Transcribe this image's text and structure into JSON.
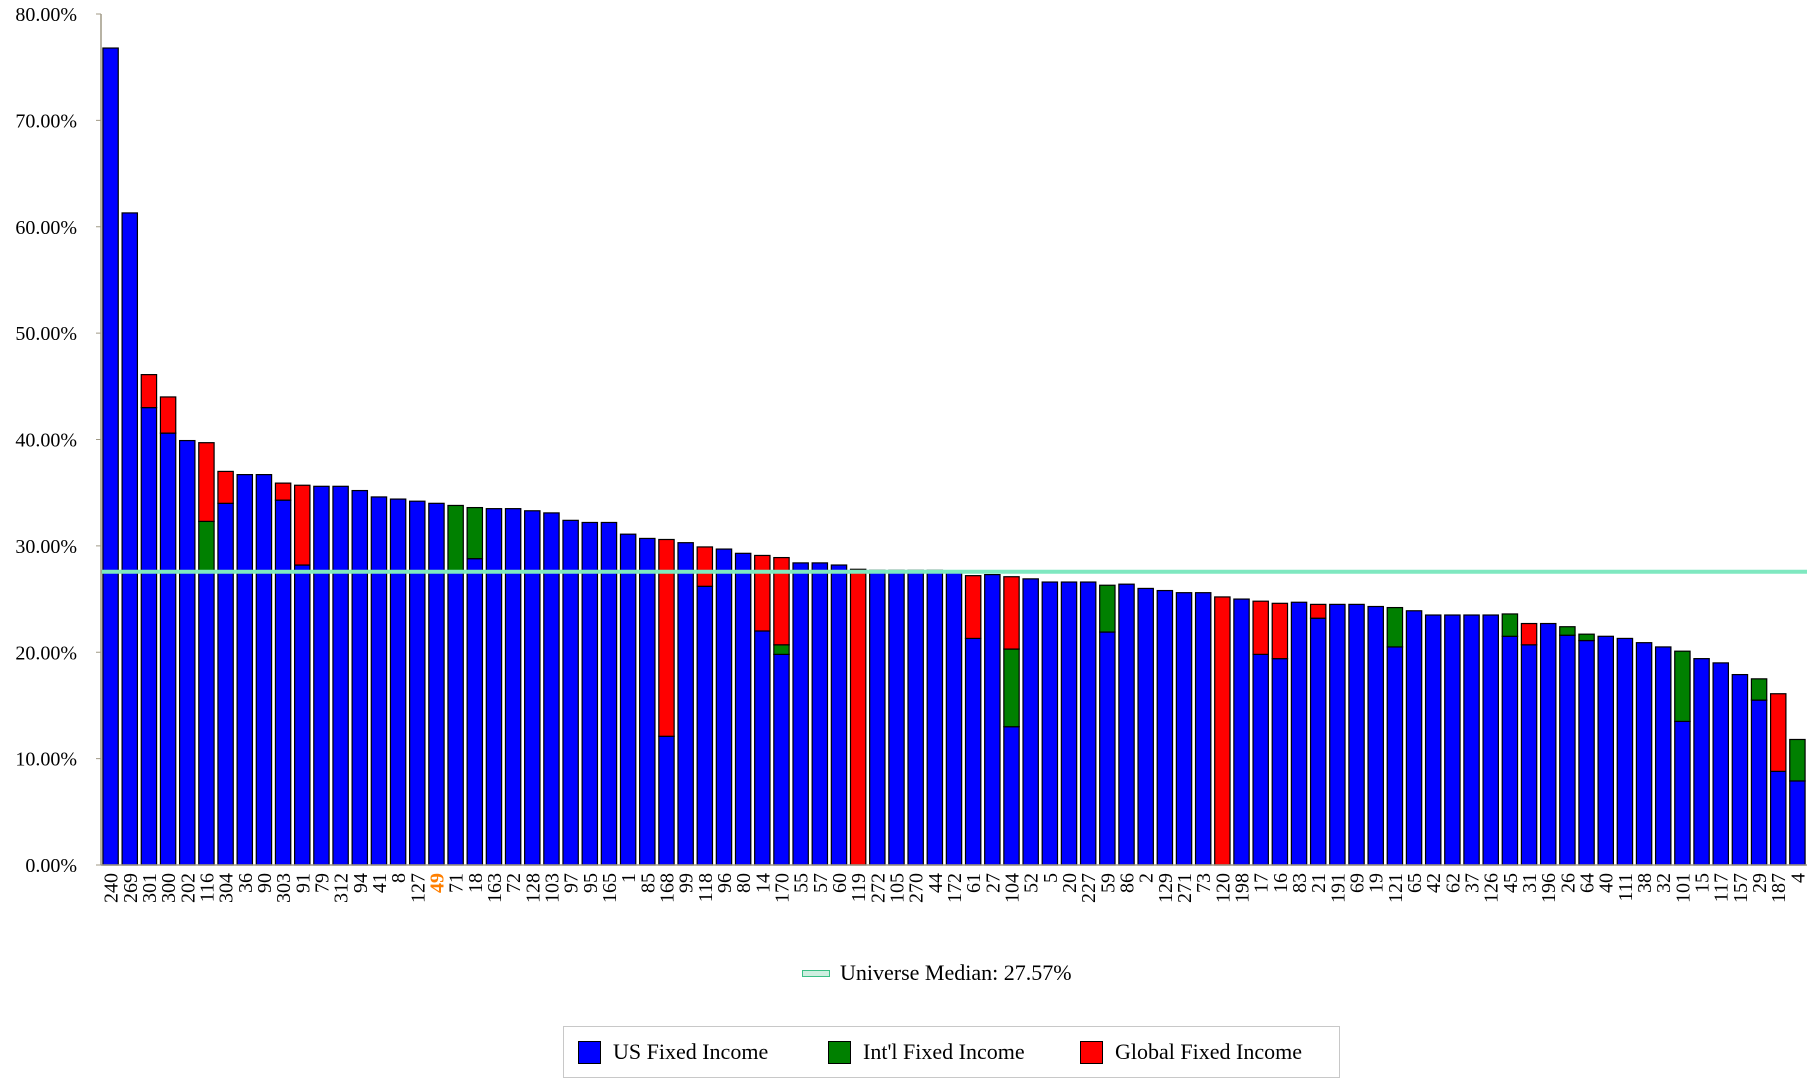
{
  "colors": {
    "us": "#0000ff",
    "intl": "#008000",
    "global": "#ff0000",
    "median": "#7fe8c0",
    "highlight_label": "#ff7f00",
    "axis": "#a09a86"
  },
  "legend": {
    "us": "US Fixed Income",
    "intl": "Int'l Fixed Income",
    "global": "Global Fixed Income"
  },
  "median_label": "Universe Median: 27.57%",
  "chart_data": {
    "type": "bar",
    "stacked": true,
    "ylim": [
      0,
      80
    ],
    "yticks": [
      0,
      10,
      20,
      30,
      40,
      50,
      60,
      70,
      80
    ],
    "ytick_labels": [
      "0.00%",
      "10.00%",
      "20.00%",
      "30.00%",
      "40.00%",
      "50.00%",
      "60.00%",
      "70.00%",
      "80.00%"
    ],
    "median": 27.57,
    "highlight_category": "49",
    "categories": [
      "240",
      "269",
      "301",
      "300",
      "202",
      "116",
      "304",
      "36",
      "90",
      "303",
      "91",
      "79",
      "312",
      "94",
      "41",
      "8",
      "127",
      "49",
      "71",
      "18",
      "163",
      "72",
      "128",
      "103",
      "97",
      "95",
      "165",
      "1",
      "85",
      "168",
      "99",
      "118",
      "96",
      "80",
      "14",
      "170",
      "55",
      "57",
      "60",
      "119",
      "272",
      "105",
      "270",
      "44",
      "172",
      "61",
      "27",
      "104",
      "52",
      "5",
      "20",
      "227",
      "59",
      "86",
      "2",
      "129",
      "271",
      "73",
      "120",
      "198",
      "17",
      "16",
      "83",
      "21",
      "191",
      "69",
      "19",
      "121",
      "65",
      "42",
      "62",
      "37",
      "126",
      "45",
      "31",
      "196",
      "26",
      "64",
      "40",
      "111",
      "38",
      "32",
      "101",
      "15",
      "117",
      "157",
      "29",
      "187",
      "4"
    ],
    "series": [
      {
        "name": "US Fixed Income",
        "values": [
          76.8,
          61.3,
          43.0,
          40.6,
          39.9,
          27.6,
          34.0,
          36.7,
          36.7,
          34.3,
          28.2,
          35.6,
          35.6,
          35.2,
          34.6,
          34.4,
          34.2,
          34.0,
          27.6,
          28.8,
          33.5,
          33.5,
          33.3,
          33.1,
          32.4,
          32.2,
          32.2,
          31.1,
          30.7,
          12.1,
          30.3,
          26.2,
          29.7,
          29.3,
          22.0,
          19.8,
          28.4,
          28.4,
          28.2,
          0,
          27.7,
          27.7,
          27.7,
          27.7,
          27.5,
          21.3,
          27.3,
          13.0,
          26.9,
          26.6,
          26.6,
          26.6,
          21.9,
          26.4,
          26.0,
          25.8,
          25.6,
          25.6,
          0,
          25.0,
          19.8,
          19.4,
          24.7,
          23.2,
          24.5,
          24.5,
          24.3,
          20.5,
          23.9,
          23.5,
          23.5,
          23.5,
          23.5,
          21.5,
          20.7,
          22.7,
          21.6,
          21.1,
          21.5,
          21.3,
          20.9,
          20.5,
          13.5,
          19.4,
          19.0,
          17.9,
          15.5,
          8.8,
          7.9
        ]
      },
      {
        "name": "Int'l Fixed Income",
        "values": [
          0,
          0,
          0,
          0,
          0,
          4.7,
          0,
          0,
          0,
          0,
          0,
          0,
          0,
          0,
          0,
          0,
          0,
          0,
          6.2,
          4.8,
          0,
          0,
          0,
          0,
          0,
          0,
          0,
          0,
          0,
          0,
          0,
          0,
          0,
          0,
          0,
          0.9,
          0,
          0,
          0,
          0,
          0,
          0,
          0,
          0,
          0,
          0,
          0,
          7.3,
          0,
          0,
          0,
          0,
          4.4,
          0,
          0,
          0,
          0,
          0,
          0,
          0,
          0,
          0,
          0,
          0,
          0,
          0,
          0,
          3.7,
          0,
          0,
          0,
          0,
          0,
          2.1,
          0,
          0,
          0.8,
          0.6,
          0,
          0,
          0,
          0,
          6.6,
          0,
          0,
          0,
          2.0,
          0,
          3.9
        ]
      },
      {
        "name": "Global Fixed Income",
        "values": [
          0,
          0,
          3.1,
          3.4,
          0,
          7.4,
          3.0,
          0,
          0,
          1.6,
          7.5,
          0,
          0,
          0,
          0,
          0,
          0,
          0,
          0,
          0,
          0,
          0,
          0,
          0,
          0,
          0,
          0,
          0,
          0,
          18.5,
          0,
          3.7,
          0,
          0,
          7.1,
          8.2,
          0,
          0,
          0,
          27.8,
          0,
          0,
          0,
          0,
          0,
          5.9,
          0,
          6.8,
          0,
          0,
          0,
          0,
          0,
          0,
          0,
          0,
          0,
          0,
          25.2,
          0,
          5.0,
          5.2,
          0,
          1.3,
          0,
          0,
          0,
          0,
          0,
          0,
          0,
          0,
          0,
          0,
          2.0,
          0,
          0,
          0,
          0,
          0,
          0,
          0,
          0,
          0,
          0,
          0,
          0,
          7.3,
          0
        ]
      }
    ]
  }
}
